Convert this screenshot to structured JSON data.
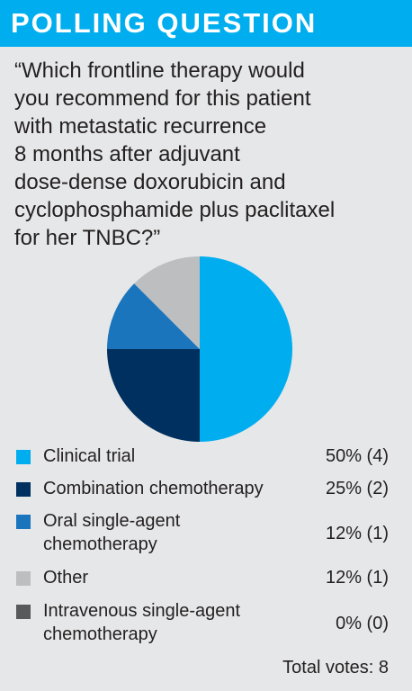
{
  "header": {
    "title": "POLLING QUESTION"
  },
  "question": {
    "lines": [
      "“Which frontline therapy would",
      "you recommend for this patient",
      "with metastatic recurrence",
      "8 months after adjuvant",
      "dose-dense doxorubicin and",
      "cyclophosphamide plus paclitaxel",
      "for her TNBC?”"
    ]
  },
  "chart_data": {
    "type": "pie",
    "slices": [
      {
        "label": "Clinical trial",
        "percent": 50,
        "votes": 4,
        "display": "50% (4)",
        "color": "#00aeef"
      },
      {
        "label": "Combination chemotherapy",
        "percent": 25,
        "votes": 2,
        "display": "25% (2)",
        "color": "#00305f"
      },
      {
        "label": "Oral single-agent chemotherapy",
        "label_lines": [
          "Oral single-agent",
          "chemotherapy"
        ],
        "percent": 12.5,
        "votes": 1,
        "display": "12% (1)",
        "color": "#1b75bc"
      },
      {
        "label": "Other",
        "percent": 12.5,
        "votes": 1,
        "display": "12% (1)",
        "color": "#bcbec0"
      },
      {
        "label": "Intravenous single-agent chemotherapy",
        "label_lines": [
          "Intravenous single-agent",
          "chemotherapy"
        ],
        "percent": 0,
        "votes": 0,
        "display": "0% (0)",
        "color": "#58595b"
      }
    ],
    "total_label": "Total votes: 8"
  }
}
